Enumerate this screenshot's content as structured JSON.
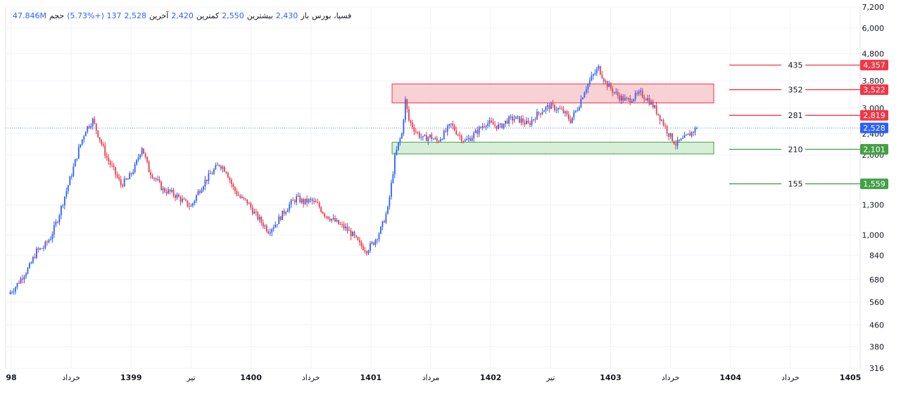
{
  "legend": {
    "symbol": "فسپا، بورس",
    "open_label": "باز",
    "open": "2,430",
    "high_label": "بیشترین",
    "high": "2,550",
    "low_label": "کمترین",
    "low": "2,420",
    "close_label": "آخرین",
    "close": "2,528",
    "change": "137 (+5.73%)",
    "volume_label": "حجم",
    "volume": "47.846M"
  },
  "colors": {
    "up": "#2962ff",
    "down": "#f23645",
    "resistance_fill": "#f7c9cd",
    "support_fill": "#cfeccf",
    "red_line": "#f23645",
    "green_line": "#43a047",
    "current_price_bg": "#2962ff"
  },
  "chart_data": {
    "type": "candlestick",
    "y_scale": "log",
    "y_ticks": [
      316,
      380,
      460,
      560,
      680,
      840,
      1000,
      1300,
      2000,
      2400,
      3000,
      3800,
      4800,
      6000,
      7200
    ],
    "y_tick_labels": [
      "316",
      "380",
      "460",
      "560",
      "680",
      "840",
      "1,000",
      "1,300",
      "2,000",
      "2,400",
      "3,000",
      "3,800",
      "4,800",
      "6,000",
      "7,200"
    ],
    "x_labels": [
      "98",
      "خرداد",
      "1399",
      "تیر",
      "1400",
      "خرداد",
      "1401",
      "مرداد",
      "1402",
      "تیر",
      "1403",
      "خرداد",
      "1404",
      "خرداد",
      "1405"
    ],
    "x_labels_bold": [
      true,
      false,
      true,
      false,
      true,
      false,
      true,
      false,
      true,
      false,
      true,
      false,
      true,
      false,
      true
    ],
    "current_price": 2528,
    "current_price_label": "2,528",
    "zones": [
      {
        "kind": "resistance",
        "low": 3140,
        "high": 3700
      },
      {
        "kind": "support",
        "low": 2020,
        "high": 2235
      }
    ],
    "levels": [
      {
        "label": "435",
        "price": 4357,
        "price_label": "4,357",
        "color": "red"
      },
      {
        "label": "352",
        "price": 3522,
        "price_label": "3,522",
        "color": "red"
      },
      {
        "label": "281",
        "price": 2819,
        "price_label": "2,819",
        "color": "red"
      },
      {
        "label": "210",
        "price": 2101,
        "price_label": "2,101",
        "color": "green"
      },
      {
        "label": "155",
        "price": 1559,
        "price_label": "1,559",
        "color": "green"
      }
    ],
    "close_path": [
      [
        0,
        600
      ],
      [
        4,
        640
      ],
      [
        8,
        700
      ],
      [
        12,
        760
      ],
      [
        16,
        870
      ],
      [
        20,
        900
      ],
      [
        24,
        980
      ],
      [
        28,
        1150
      ],
      [
        32,
        1400
      ],
      [
        36,
        1700
      ],
      [
        40,
        2100
      ],
      [
        44,
        2500
      ],
      [
        48,
        2700
      ],
      [
        52,
        2300
      ],
      [
        56,
        1950
      ],
      [
        60,
        1750
      ],
      [
        64,
        1550
      ],
      [
        68,
        1620
      ],
      [
        72,
        1800
      ],
      [
        76,
        2150
      ],
      [
        80,
        1750
      ],
      [
        84,
        1620
      ],
      [
        88,
        1480
      ],
      [
        92,
        1450
      ],
      [
        96,
        1400
      ],
      [
        100,
        1330
      ],
      [
        104,
        1280
      ],
      [
        108,
        1450
      ],
      [
        112,
        1600
      ],
      [
        116,
        1720
      ],
      [
        120,
        1850
      ],
      [
        124,
        1750
      ],
      [
        128,
        1500
      ],
      [
        132,
        1380
      ],
      [
        136,
        1330
      ],
      [
        140,
        1210
      ],
      [
        144,
        1120
      ],
      [
        148,
        1040
      ],
      [
        152,
        1100
      ],
      [
        156,
        1200
      ],
      [
        160,
        1300
      ],
      [
        164,
        1380
      ],
      [
        168,
        1330
      ],
      [
        172,
        1350
      ],
      [
        176,
        1300
      ],
      [
        180,
        1200
      ],
      [
        184,
        1150
      ],
      [
        188,
        1100
      ],
      [
        192,
        1060
      ],
      [
        196,
        1000
      ],
      [
        200,
        920
      ],
      [
        204,
        880
      ],
      [
        208,
        940
      ],
      [
        212,
        1050
      ],
      [
        216,
        1250
      ],
      [
        218,
        1550
      ],
      [
        220,
        1950
      ],
      [
        222,
        2200
      ],
      [
        224,
        2400
      ],
      [
        226,
        3200
      ],
      [
        228,
        2700
      ],
      [
        232,
        2450
      ],
      [
        236,
        2300
      ],
      [
        240,
        2350
      ],
      [
        244,
        2250
      ],
      [
        248,
        2400
      ],
      [
        252,
        2600
      ],
      [
        256,
        2400
      ],
      [
        260,
        2250
      ],
      [
        264,
        2350
      ],
      [
        268,
        2500
      ],
      [
        272,
        2650
      ],
      [
        276,
        2600
      ],
      [
        280,
        2550
      ],
      [
        284,
        2700
      ],
      [
        288,
        2750
      ],
      [
        292,
        2700
      ],
      [
        296,
        2600
      ],
      [
        300,
        2800
      ],
      [
        304,
        2950
      ],
      [
        308,
        3050
      ],
      [
        312,
        3000
      ],
      [
        316,
        2900
      ],
      [
        320,
        2700
      ],
      [
        324,
        3000
      ],
      [
        328,
        3500
      ],
      [
        332,
        3900
      ],
      [
        336,
        4250
      ],
      [
        340,
        3750
      ],
      [
        344,
        3500
      ],
      [
        348,
        3300
      ],
      [
        352,
        3200
      ],
      [
        356,
        3300
      ],
      [
        360,
        3400
      ],
      [
        364,
        3250
      ],
      [
        368,
        3000
      ],
      [
        372,
        2700
      ],
      [
        376,
        2400
      ],
      [
        380,
        2200
      ],
      [
        384,
        2280
      ],
      [
        388,
        2400
      ],
      [
        392,
        2528
      ]
    ]
  }
}
